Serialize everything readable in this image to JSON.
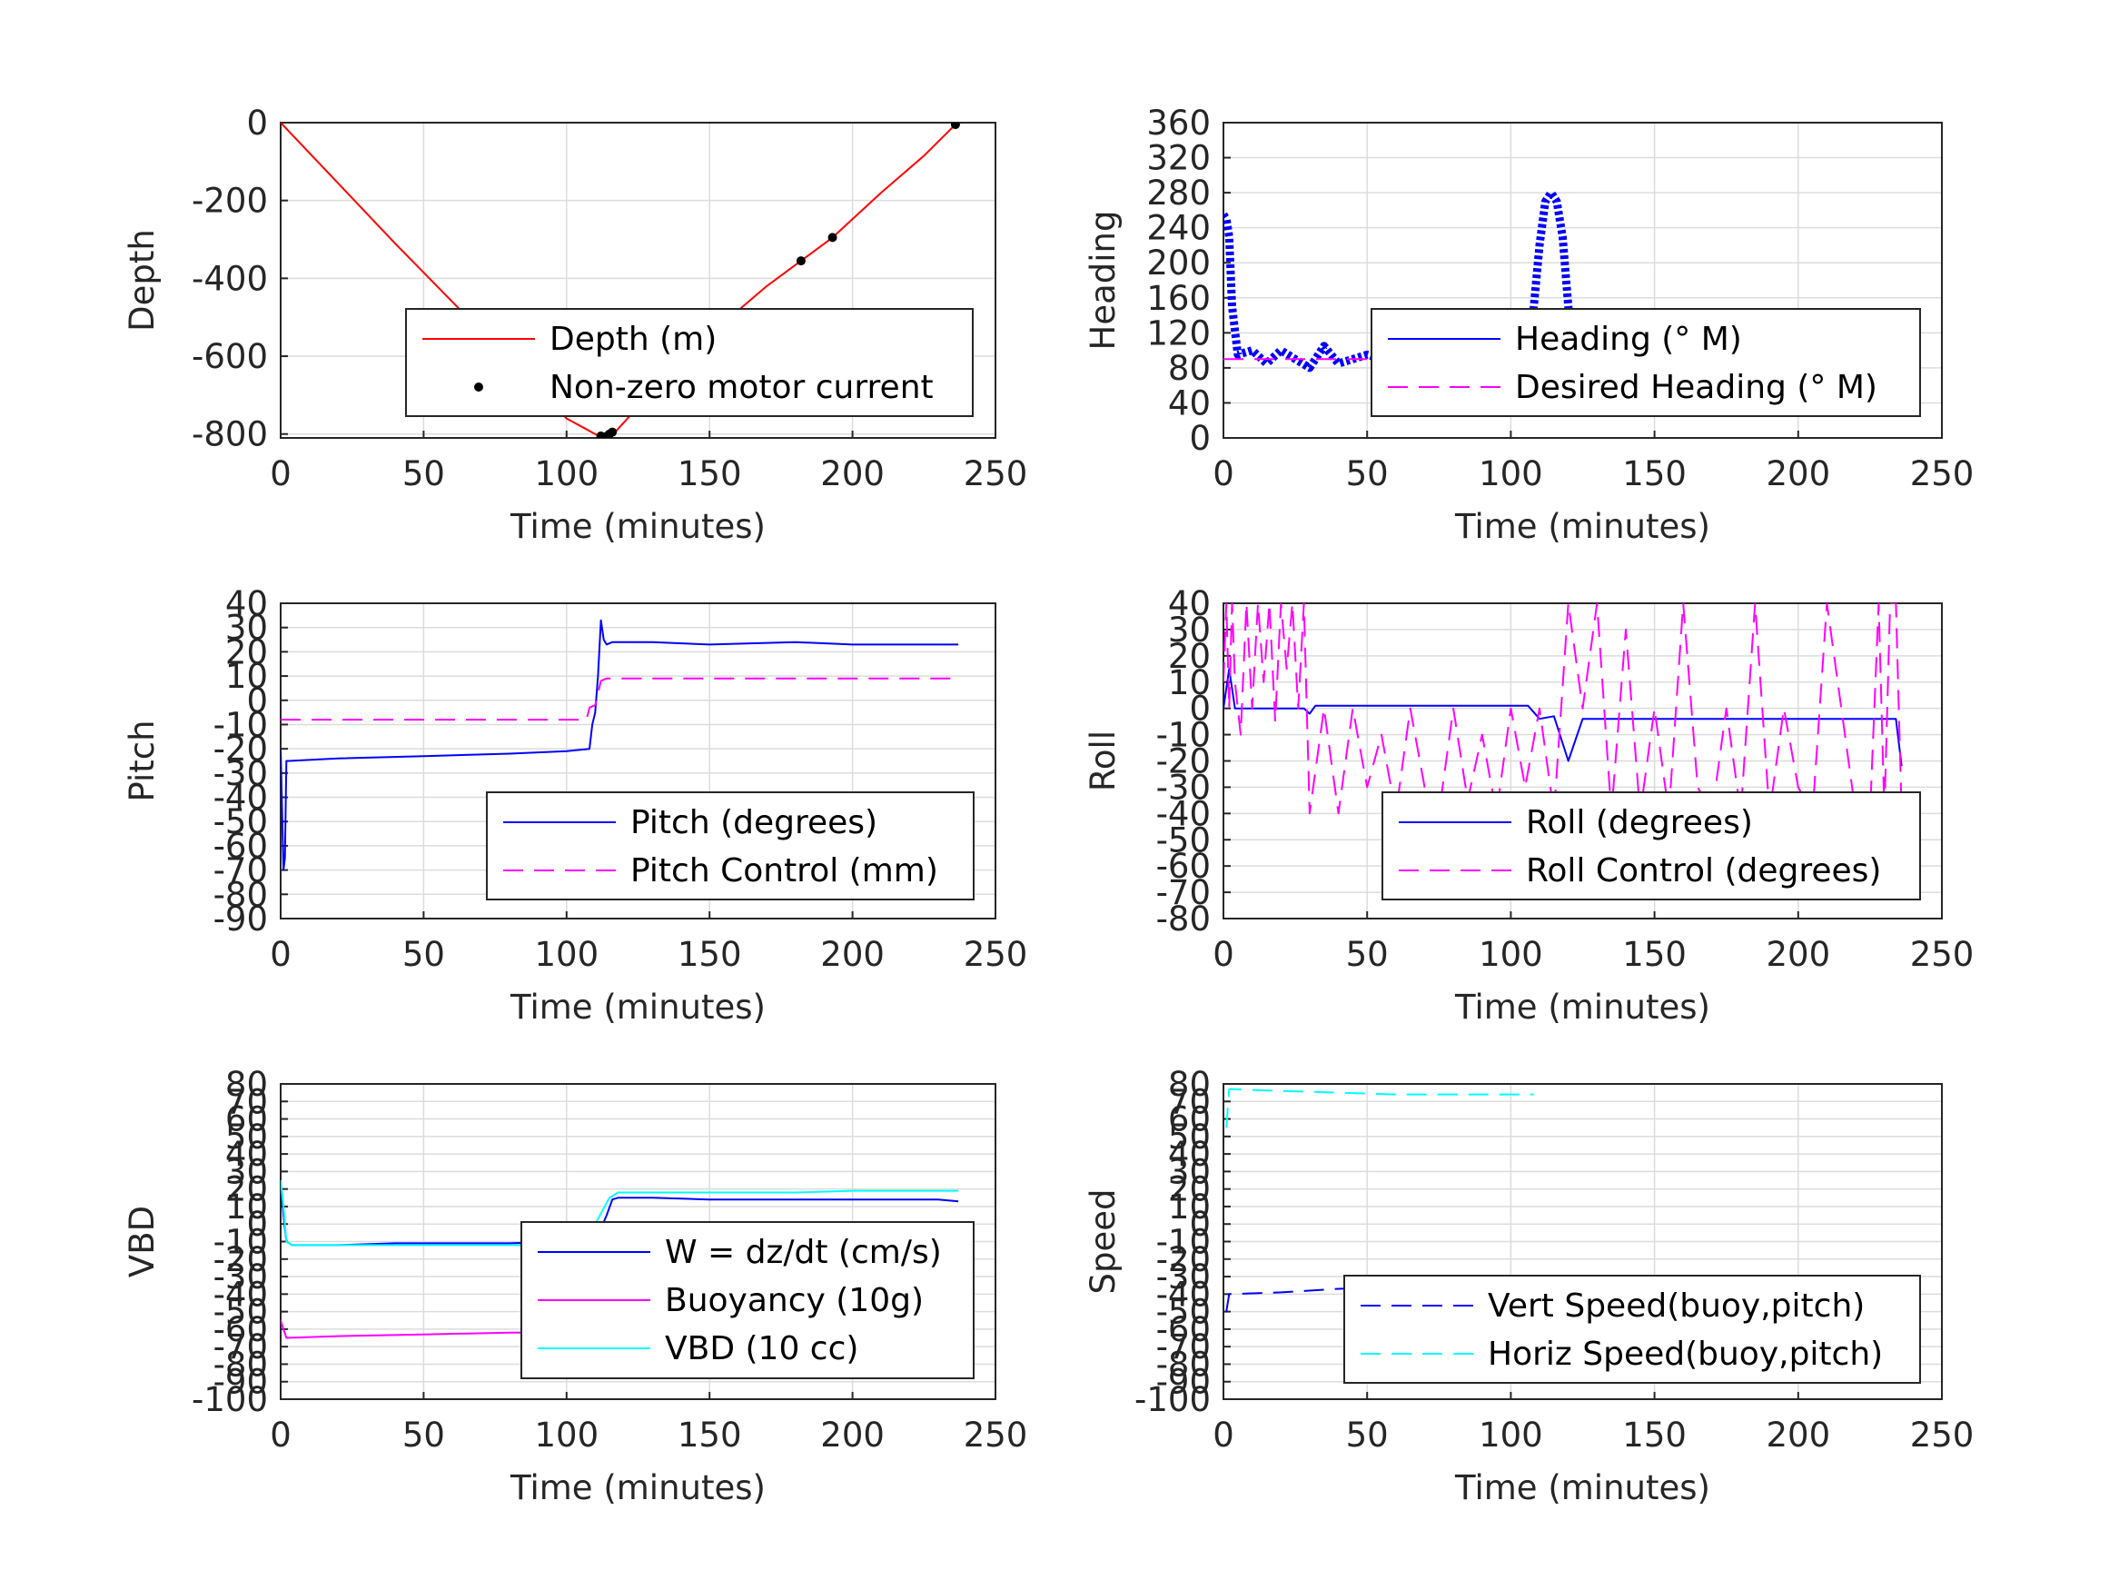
{
  "colors": {
    "grid": "#dcdcdc",
    "axis": "#262626",
    "blue": "#0000ff",
    "red": "#ff0000",
    "magenta": "#ff00ff",
    "cyan": "#00ffff",
    "black": "#000000"
  },
  "chart_data": [
    {
      "type": "line",
      "ylabel": "Depth",
      "xlabel": "Time (minutes)",
      "xlim": [
        0,
        250
      ],
      "ylim": [
        -810,
        0
      ],
      "xticks": [
        0,
        50,
        100,
        150,
        200,
        250
      ],
      "yticks": [
        0,
        -200,
        -400,
        -600,
        -800
      ],
      "legend_position": "bottom-right",
      "series": [
        {
          "name": "Depth (m)",
          "color": "#ff0000",
          "style": "solid",
          "x": [
            0,
            20,
            40,
            60,
            80,
            100,
            110,
            113,
            117,
            130,
            150,
            170,
            182,
            193,
            210,
            225,
            236
          ],
          "y": [
            0,
            -155,
            -310,
            -460,
            -610,
            -760,
            -800,
            -810,
            -795,
            -690,
            -545,
            -420,
            -355,
            -295,
            -180,
            -85,
            -5
          ]
        },
        {
          "name": "Non-zero motor current",
          "color": "#000000",
          "style": "markers",
          "x": [
            112,
            113,
            114,
            115,
            116,
            182,
            193,
            236
          ],
          "y": [
            -805,
            -808,
            -806,
            -800,
            -795,
            -355,
            -295,
            -5
          ]
        }
      ]
    },
    {
      "type": "line",
      "ylabel": "Heading",
      "xlabel": "Time (minutes)",
      "xlim": [
        0,
        250
      ],
      "ylim": [
        0,
        360
      ],
      "xticks": [
        0,
        50,
        100,
        150,
        200,
        250
      ],
      "yticks": [
        0,
        40,
        80,
        120,
        160,
        200,
        240,
        280,
        320,
        360
      ],
      "legend_position": "bottom-right",
      "series": [
        {
          "name": "Heading (° M)",
          "color": "#0000ff",
          "style": "thick",
          "x": [
            0,
            1,
            2,
            3,
            5,
            10,
            15,
            20,
            25,
            30,
            35,
            40,
            50,
            60,
            70,
            80,
            90,
            100,
            105,
            108,
            110,
            112,
            114,
            116,
            118,
            120,
            122,
            125,
            130,
            140,
            150,
            160,
            170,
            180,
            190,
            200,
            210,
            220,
            230,
            237
          ],
          "y": [
            255,
            250,
            230,
            150,
            95,
            100,
            85,
            100,
            90,
            80,
            105,
            85,
            95,
            85,
            95,
            80,
            90,
            85,
            95,
            150,
            220,
            270,
            280,
            270,
            230,
            150,
            90,
            85,
            95,
            80,
            100,
            85,
            95,
            90,
            100,
            85,
            95,
            90,
            95,
            90
          ]
        },
        {
          "name": "Desired Heading (° M)",
          "color": "#ff00ff",
          "style": "dashed",
          "x": [
            0,
            237
          ],
          "y": [
            90,
            90
          ]
        }
      ]
    },
    {
      "type": "line",
      "ylabel": "Pitch",
      "xlabel": "Time (minutes)",
      "xlim": [
        0,
        250
      ],
      "ylim": [
        -90,
        40
      ],
      "xticks": [
        0,
        50,
        100,
        150,
        200,
        250
      ],
      "yticks": [
        40,
        30,
        20,
        10,
        0,
        -10,
        -20,
        -30,
        -40,
        -50,
        -60,
        -70,
        -80,
        -90
      ],
      "legend_position": "bottom-right",
      "series": [
        {
          "name": "Pitch (degrees)",
          "color": "#0000ff",
          "style": "solid",
          "x": [
            0,
            1,
            1.5,
            2,
            3,
            20,
            50,
            80,
            100,
            108,
            109,
            110,
            111,
            112,
            113,
            114,
            116,
            130,
            150,
            180,
            200,
            220,
            237
          ],
          "y": [
            -20,
            -70,
            -65,
            -25,
            -25,
            -24,
            -23,
            -22,
            -21,
            -20,
            -10,
            -5,
            10,
            33,
            25,
            23,
            24,
            24,
            23,
            24,
            23,
            23,
            23
          ]
        },
        {
          "name": "Pitch Control (mm)",
          "color": "#ff00ff",
          "style": "dashed",
          "x": [
            0,
            107,
            108,
            110,
            112,
            114,
            237
          ],
          "y": [
            -8,
            -8,
            -3,
            -2,
            8,
            9,
            9
          ]
        }
      ]
    },
    {
      "type": "line",
      "ylabel": "Roll",
      "xlabel": "Time (minutes)",
      "xlim": [
        0,
        250
      ],
      "ylim": [
        -80,
        40
      ],
      "xticks": [
        0,
        50,
        100,
        150,
        200,
        250
      ],
      "yticks": [
        40,
        30,
        20,
        10,
        0,
        -10,
        -20,
        -30,
        -40,
        -50,
        -60,
        -70,
        -80
      ],
      "legend_position": "bottom-right",
      "series": [
        {
          "name": "Roll (degrees)",
          "color": "#0000ff",
          "style": "solid",
          "x": [
            0,
            2,
            4,
            28,
            30,
            32,
            40,
            60,
            80,
            100,
            106,
            110,
            115,
            120,
            125,
            130,
            150,
            180,
            200,
            220,
            234,
            236
          ],
          "y": [
            0,
            15,
            0,
            0,
            -2,
            1,
            1,
            1,
            1,
            1,
            1,
            -4,
            -3,
            -20,
            -4,
            -4,
            -4,
            -4,
            -4,
            -4,
            -4,
            -22
          ]
        },
        {
          "name": "Roll Control (degrees)",
          "color": "#ff00ff",
          "style": "dashed",
          "x": [
            0,
            1,
            2,
            3,
            4,
            6,
            8,
            10,
            12,
            14,
            16,
            18,
            20,
            22,
            24,
            26,
            28,
            30,
            35,
            40,
            45,
            50,
            55,
            60,
            65,
            70,
            75,
            80,
            85,
            90,
            95,
            100,
            105,
            110,
            115,
            120,
            125,
            130,
            135,
            140,
            145,
            150,
            155,
            160,
            165,
            170,
            175,
            180,
            185,
            190,
            195,
            200,
            205,
            210,
            215,
            220,
            225,
            228,
            230,
            232,
            234,
            236
          ],
          "y": [
            10,
            40,
            0,
            40,
            10,
            -10,
            40,
            0,
            40,
            10,
            40,
            -5,
            40,
            15,
            40,
            0,
            40,
            -40,
            0,
            -40,
            0,
            -30,
            -10,
            -40,
            0,
            -30,
            -40,
            0,
            -35,
            -10,
            -40,
            0,
            -30,
            0,
            -40,
            40,
            0,
            40,
            -40,
            30,
            -40,
            0,
            -40,
            40,
            -30,
            -40,
            0,
            -40,
            40,
            -40,
            0,
            -30,
            -40,
            40,
            0,
            -40,
            -40,
            40,
            -40,
            40,
            40,
            -40
          ]
        }
      ]
    },
    {
      "type": "line",
      "ylabel": "VBD",
      "xlabel": "Time (minutes)",
      "xlim": [
        0,
        250
      ],
      "ylim": [
        -100,
        80
      ],
      "xticks": [
        0,
        50,
        100,
        150,
        200,
        250
      ],
      "yticks": [
        80,
        70,
        60,
        50,
        40,
        30,
        20,
        10,
        0,
        -10,
        -20,
        -30,
        -40,
        -50,
        -60,
        -70,
        -80,
        -90,
        -100
      ],
      "legend_position": "bottom-right",
      "series": [
        {
          "name": "W = dz/dt (cm/s)",
          "color": "#0000ff",
          "style": "solid",
          "x": [
            0,
            1,
            2,
            4,
            20,
            40,
            60,
            80,
            100,
            108,
            110,
            114,
            116,
            118,
            130,
            150,
            170,
            190,
            210,
            230,
            237
          ],
          "y": [
            25,
            5,
            -10,
            -12,
            -12,
            -11,
            -11,
            -11,
            -10,
            -11,
            -10,
            5,
            14,
            15,
            15,
            14,
            14,
            14,
            14,
            14,
            13
          ]
        },
        {
          "name": "Buoyancy (10g)",
          "color": "#ff00ff",
          "style": "solid",
          "x": [
            0,
            1,
            2,
            20,
            50,
            80,
            107
          ],
          "y": [
            -55,
            -60,
            -65,
            -64,
            -63,
            -62,
            -62
          ]
        },
        {
          "name": "VBD (10 cc)",
          "color": "#00ffff",
          "style": "solid",
          "x": [
            0,
            1,
            2,
            4,
            20,
            60,
            100,
            107,
            110,
            115,
            118,
            150,
            180,
            200,
            237
          ],
          "y": [
            25,
            10,
            -10,
            -12,
            -12,
            -12,
            -12,
            -12,
            0,
            15,
            18,
            18,
            18,
            19,
            19
          ]
        }
      ]
    },
    {
      "type": "line",
      "ylabel": "Speed",
      "xlabel": "Time (minutes)",
      "xlim": [
        0,
        250
      ],
      "ylim": [
        -100,
        80
      ],
      "xticks": [
        0,
        50,
        100,
        150,
        200,
        250
      ],
      "yticks": [
        80,
        70,
        60,
        50,
        40,
        30,
        20,
        10,
        0,
        -10,
        -20,
        -30,
        -40,
        -50,
        -60,
        -70,
        -80,
        -90,
        -100
      ],
      "legend_position": "bottom-right",
      "series": [
        {
          "name": "Vert Speed(buoy,pitch)",
          "color": "#0000ff",
          "style": "dashed",
          "x": [
            1,
            2,
            3,
            20,
            40,
            60,
            80,
            100,
            108
          ],
          "y": [
            -50,
            -40,
            -40,
            -39,
            -37,
            -36,
            -35,
            -35,
            -35
          ]
        },
        {
          "name": "Horiz Speed(buoy,pitch)",
          "color": "#00ffff",
          "style": "dashed",
          "x": [
            1,
            2,
            3,
            20,
            40,
            60,
            80,
            100,
            108
          ],
          "y": [
            55,
            77,
            77,
            76,
            75,
            74,
            74,
            74,
            74
          ]
        }
      ]
    }
  ]
}
